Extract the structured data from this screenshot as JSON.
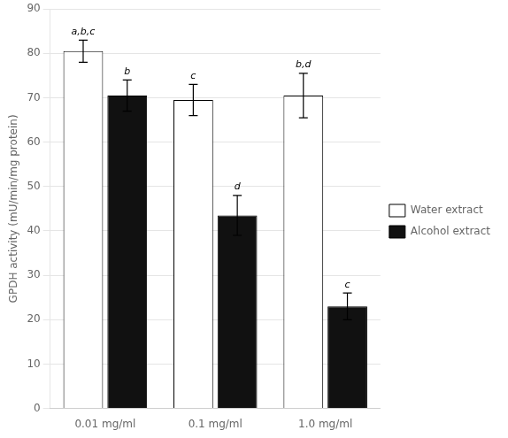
{
  "chart_data": {
    "type": "bar",
    "categories": [
      "0.01 mg/ml",
      "0.1 mg/ml",
      "1.0 mg/ml"
    ],
    "series": [
      {
        "name": "Water extract",
        "color": "#ffffff",
        "values": [
          80.5,
          69.5,
          70.5
        ],
        "errors": [
          2.5,
          3.5,
          5.0
        ],
        "annotations": [
          "a,b,c",
          "c",
          "b,d"
        ]
      },
      {
        "name": "Alcohol extract",
        "color": "#111111",
        "values": [
          70.5,
          43.5,
          23.0
        ],
        "errors": [
          3.5,
          4.5,
          3.0
        ],
        "annotations": [
          "b",
          "d",
          "c"
        ]
      }
    ],
    "ylabel": "GPDH activity (mU/min/mg protein)",
    "ylim": [
      0,
      90
    ],
    "yticks": [
      0,
      10,
      20,
      30,
      40,
      50,
      60,
      70,
      80,
      90
    ],
    "grid": true,
    "legend": "right"
  }
}
